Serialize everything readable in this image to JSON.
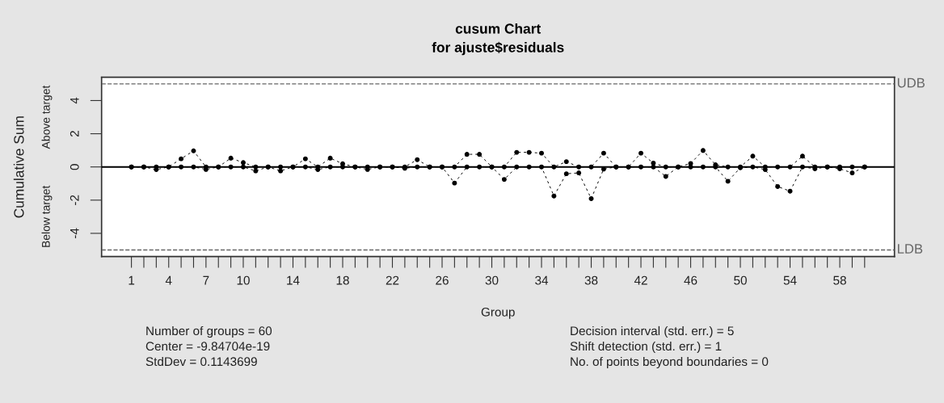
{
  "chart_data": {
    "type": "line",
    "title": "cusum Chart",
    "subtitle": "for ajuste$residuals",
    "xlabel": "Group",
    "ylabel": "Cumulative Sum",
    "annotations": [
      "Above target",
      "Below target",
      "Number of groups = 60",
      "Center = -9.84704e-19",
      "StdDev = 0.1143699",
      "Decision interval (std. err.) = 5",
      "Shift detection (std. err.) = 1",
      "No. of points beyond boundaries = 0"
    ],
    "x": [
      1,
      2,
      3,
      4,
      5,
      6,
      7,
      8,
      9,
      10,
      11,
      12,
      13,
      14,
      15,
      16,
      17,
      18,
      19,
      20,
      21,
      22,
      23,
      24,
      25,
      26,
      27,
      28,
      29,
      30,
      31,
      32,
      33,
      34,
      35,
      36,
      37,
      38,
      39,
      40,
      41,
      42,
      43,
      44,
      45,
      46,
      47,
      48,
      49,
      50,
      51,
      52,
      53,
      54,
      55,
      56,
      57,
      58,
      59,
      60
    ],
    "series": [
      {
        "color": "#000000",
        "values": [
          0,
          0,
          0,
          0,
          0.49,
          0.97,
          0,
          0,
          0.53,
          0.26,
          0,
          0,
          0,
          0,
          0.49,
          0,
          0.53,
          0.19,
          0,
          0,
          0,
          0,
          0,
          0.44,
          0,
          0,
          0,
          0.76,
          0.76,
          0,
          0,
          0.88,
          0.88,
          0.83,
          0,
          0.32,
          0,
          0,
          0.83,
          0,
          0,
          0.83,
          0.23,
          0,
          0,
          0.21,
          0.99,
          0.13,
          0,
          0,
          0.65,
          0,
          0,
          0,
          0.65,
          0,
          0,
          0,
          0,
          0
        ]
      },
      {
        "color": "#000000",
        "values": [
          0,
          0,
          -0.16,
          0,
          0,
          0,
          -0.15,
          0,
          0,
          0,
          -0.24,
          0,
          -0.24,
          0,
          0,
          -0.16,
          0,
          0,
          0,
          -0.15,
          0,
          0,
          -0.08,
          0,
          0,
          0,
          -0.97,
          0,
          0,
          0,
          -0.75,
          0,
          0,
          0,
          -1.75,
          -0.41,
          -0.36,
          -1.91,
          -0.13,
          0,
          0,
          0,
          0,
          -0.57,
          0,
          0,
          0,
          0,
          -0.86,
          -0.05,
          0,
          -0.16,
          -1.18,
          -1.46,
          0,
          -0.11,
          0,
          -0.11,
          -0.36,
          0
        ]
      }
    ],
    "xlim": [
      -1.4,
      62.4
    ],
    "xticks": [
      1,
      {
        "value": 2,
        "label": null
      },
      {
        "value": 3,
        "label": null
      },
      4,
      {
        "value": 5,
        "label": null
      },
      {
        "value": 6,
        "label": null
      },
      7,
      {
        "value": 8,
        "label": null
      },
      {
        "value": 9,
        "label": null
      },
      10,
      {
        "value": 11,
        "label": null
      },
      {
        "value": 12,
        "label": null
      },
      {
        "value": 13,
        "label": null
      },
      14,
      {
        "value": 15,
        "label": null
      },
      {
        "value": 16,
        "label": null
      },
      {
        "value": 17,
        "label": null
      },
      18,
      {
        "value": 19,
        "label": null
      },
      {
        "value": 20,
        "label": null
      },
      {
        "value": 21,
        "label": null
      },
      22,
      {
        "value": 23,
        "label": null
      },
      {
        "value": 24,
        "label": null
      },
      {
        "value": 25,
        "label": null
      },
      26,
      {
        "value": 27,
        "label": null
      },
      {
        "value": 28,
        "label": null
      },
      {
        "value": 29,
        "label": null
      },
      30,
      {
        "value": 31,
        "label": null
      },
      {
        "value": 32,
        "label": null
      },
      {
        "value": 33,
        "label": null
      },
      34,
      {
        "value": 35,
        "label": null
      },
      {
        "value": 36,
        "label": null
      },
      {
        "value": 37,
        "label": null
      },
      38,
      {
        "value": 39,
        "label": null
      },
      {
        "value": 40,
        "label": null
      },
      {
        "value": 41,
        "label": null
      },
      42,
      {
        "value": 43,
        "label": null
      },
      {
        "value": 44,
        "label": null
      },
      {
        "value": 45,
        "label": null
      },
      46,
      {
        "value": 47,
        "label": null
      },
      {
        "value": 48,
        "label": null
      },
      {
        "value": 49,
        "label": null
      },
      50,
      {
        "value": 51,
        "label": null
      },
      {
        "value": 52,
        "label": null
      },
      {
        "value": 53,
        "label": null
      },
      54,
      {
        "value": 55,
        "label": null
      },
      {
        "value": 56,
        "label": null
      },
      {
        "value": 57,
        "label": null
      },
      58,
      {
        "value": 59,
        "label": null
      },
      {
        "value": 60,
        "label": null
      }
    ],
    "ylim": [
      -5.4,
      5.4
    ],
    "yticks": [
      -4,
      -2,
      0,
      2,
      4
    ],
    "ref_lines": [
      {
        "axis": "y",
        "value": 5,
        "label": "UDB",
        "color": "#666666",
        "line_style": "dashed"
      },
      {
        "axis": "y",
        "value": -5,
        "label": "LDB",
        "color": "#666666",
        "line_style": "dashed"
      },
      {
        "axis": "y",
        "value": 0,
        "label": null,
        "color": "#000000",
        "line_style": "solid"
      }
    ],
    "grid": false,
    "marker": "circle",
    "line_style": "dashed"
  }
}
